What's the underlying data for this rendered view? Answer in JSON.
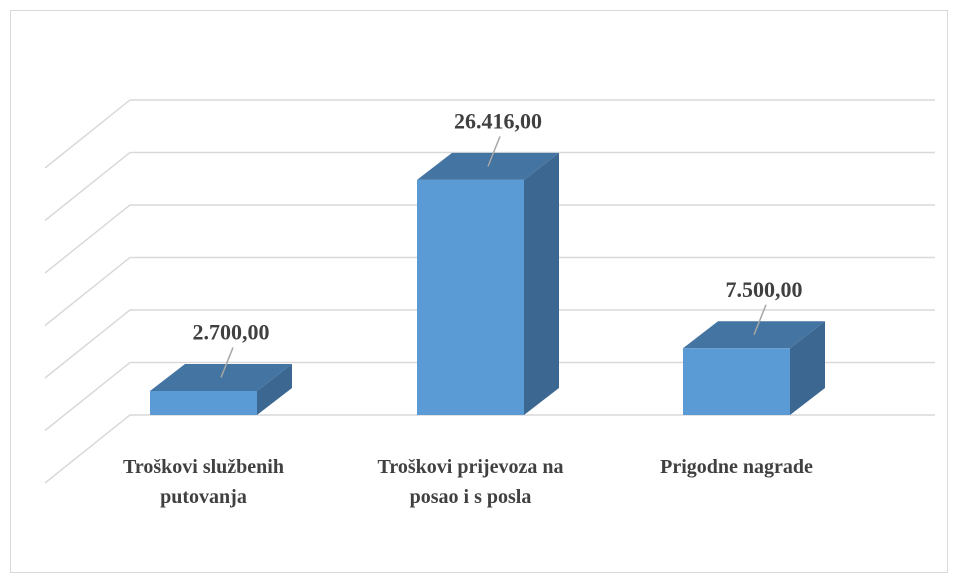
{
  "chart_data": {
    "type": "bar3d",
    "categories": [
      "Troškovi službenih putovanja",
      "Troškovi prijevoza na posao i s posla",
      "Prigodne nagrade"
    ],
    "values": [
      2700,
      26416,
      7500
    ],
    "value_labels": [
      "2.700,00",
      "26.416,00",
      "7.500,00"
    ],
    "color": "#5b9bd5",
    "ylim": [
      0,
      30000
    ],
    "yticks": [
      0,
      5000,
      10000,
      15000,
      20000,
      25000,
      30000
    ],
    "grid": true
  }
}
